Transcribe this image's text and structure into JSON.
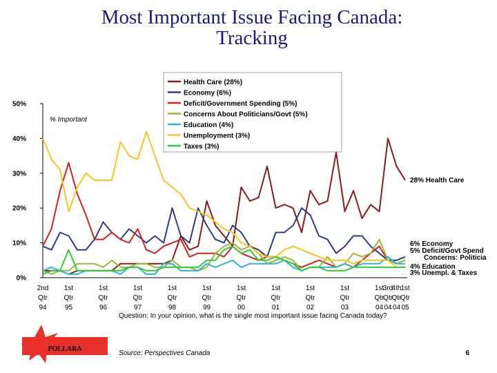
{
  "chart_data": {
    "type": "line",
    "title": "Most Important Issue Facing Canada:\nTracking",
    "ylabel": "% Important",
    "categories": [
      "2nd\nQtr\n94",
      null,
      null,
      "1st\nQtr\n95",
      null,
      null,
      null,
      "1st\nQtr\n96",
      null,
      null,
      null,
      "1st\nQtr\n97",
      null,
      null,
      null,
      "1st\nQtr\n98",
      null,
      null,
      null,
      "1st\nQtr\n99",
      null,
      null,
      null,
      "1st\nQtr\n00",
      null,
      null,
      null,
      "1st\nQtr\n01",
      null,
      null,
      null,
      "1st\nQtr\n02",
      null,
      null,
      null,
      "1st\nQtr\n03",
      null,
      null,
      null,
      "1st\nQtr\n04",
      "3rd\nQtr\n04",
      "4th\nQtr\n04",
      "1st\nQtr\n05"
    ],
    "ylim": [
      0,
      50
    ],
    "yticks": [
      {
        "value": 0,
        "label": "0%"
      },
      {
        "value": 10,
        "label": "10%"
      },
      {
        "value": 20,
        "label": "20%"
      },
      {
        "value": 30,
        "label": "30%"
      },
      {
        "value": 40,
        "label": "40%"
      },
      {
        "value": 50,
        "label": "50%"
      }
    ],
    "series": [
      {
        "name": "Health Care (28%)",
        "color": "#8b1a1a",
        "values": [
          2,
          2,
          2,
          1,
          2,
          2,
          2,
          2,
          2,
          4,
          4,
          4,
          4,
          4,
          4,
          5,
          12,
          8,
          9,
          22,
          15,
          12,
          9,
          26,
          22,
          23,
          32,
          20,
          21,
          20,
          13,
          25,
          21,
          22,
          36,
          19,
          25,
          17,
          21,
          19,
          40,
          32,
          28
        ]
      },
      {
        "name": "Economy (6%)",
        "color": "#2e3a87",
        "values": [
          9,
          8,
          13,
          12,
          8,
          8,
          11,
          16,
          13,
          11,
          14,
          12,
          10,
          12,
          10,
          20,
          12,
          10,
          20,
          15,
          11,
          10,
          15,
          13,
          9,
          8,
          6,
          13,
          13,
          15,
          20,
          18,
          12,
          11,
          7,
          9,
          12,
          12,
          9,
          7,
          5,
          5,
          6
        ]
      },
      {
        "name": "Deficit/Government Spending (5%)",
        "color": "#d42020",
        "values": [
          9,
          14,
          25,
          33,
          24,
          18,
          11,
          11,
          13,
          11,
          10,
          14,
          8,
          7,
          9,
          10,
          11,
          6,
          7,
          7,
          7,
          6,
          9,
          7,
          6,
          5,
          6,
          6,
          5,
          4,
          3,
          4,
          5,
          4,
          3,
          4,
          3,
          5,
          7,
          9,
          5,
          4,
          5
        ]
      },
      {
        "name": "Concerns About Politicians/Govt (5%)",
        "color": "#9ab83a",
        "values": [
          2,
          1,
          2,
          2,
          4,
          4,
          4,
          3,
          5,
          3,
          3,
          4,
          4,
          3,
          3,
          5,
          3,
          3,
          2,
          3,
          7,
          9,
          10,
          8,
          9,
          7,
          4,
          5,
          6,
          5,
          2,
          3,
          3,
          6,
          3,
          4,
          7,
          6,
          7,
          11,
          5,
          4,
          5
        ]
      },
      {
        "name": "Education (4%)",
        "color": "#2bb5d6",
        "values": [
          2,
          3,
          2,
          1,
          1,
          2,
          2,
          2,
          2,
          1,
          3,
          3,
          1,
          1,
          4,
          4,
          2,
          2,
          2,
          4,
          3,
          4,
          5,
          3,
          4,
          4,
          4,
          4,
          5,
          3,
          2,
          3,
          3,
          3,
          3,
          4,
          3,
          4,
          4,
          4,
          6,
          4,
          4
        ]
      },
      {
        "name": "Unemployment (3%)",
        "color": "#f2c81e",
        "values": [
          40,
          34,
          31,
          19,
          26,
          30,
          28,
          28,
          28,
          39,
          35,
          34,
          42,
          35,
          28,
          26,
          24,
          20,
          19,
          18,
          16,
          14,
          13,
          10,
          9,
          7,
          6,
          6,
          8,
          9,
          8,
          7,
          6,
          5,
          5,
          5,
          4,
          5,
          5,
          5,
          5,
          3,
          3
        ]
      },
      {
        "name": "Taxes (3%)",
        "color": "#33cc33",
        "values": [
          1,
          2,
          2,
          8,
          2,
          2,
          2,
          2,
          2,
          2,
          3,
          3,
          2,
          2,
          3,
          3,
          3,
          3,
          3,
          5,
          5,
          8,
          9,
          7,
          8,
          5,
          5,
          6,
          5,
          4,
          2,
          3,
          3,
          2,
          2,
          2,
          3,
          3,
          3,
          3,
          3,
          3,
          3
        ]
      }
    ],
    "annotations": [
      "28% Health Care",
      "6% Economy",
      "5% Deficit/Govt Spend",
      "Concerns: Politicia",
      "4% Education",
      "3% Unempl. & Taxes"
    ]
  },
  "footer": {
    "question": "Question: In your opinion, what is the single most important issue facing Canada today?",
    "source": "Source: Perspectives Canada",
    "page_number": "6",
    "logo": "POLLARA"
  }
}
